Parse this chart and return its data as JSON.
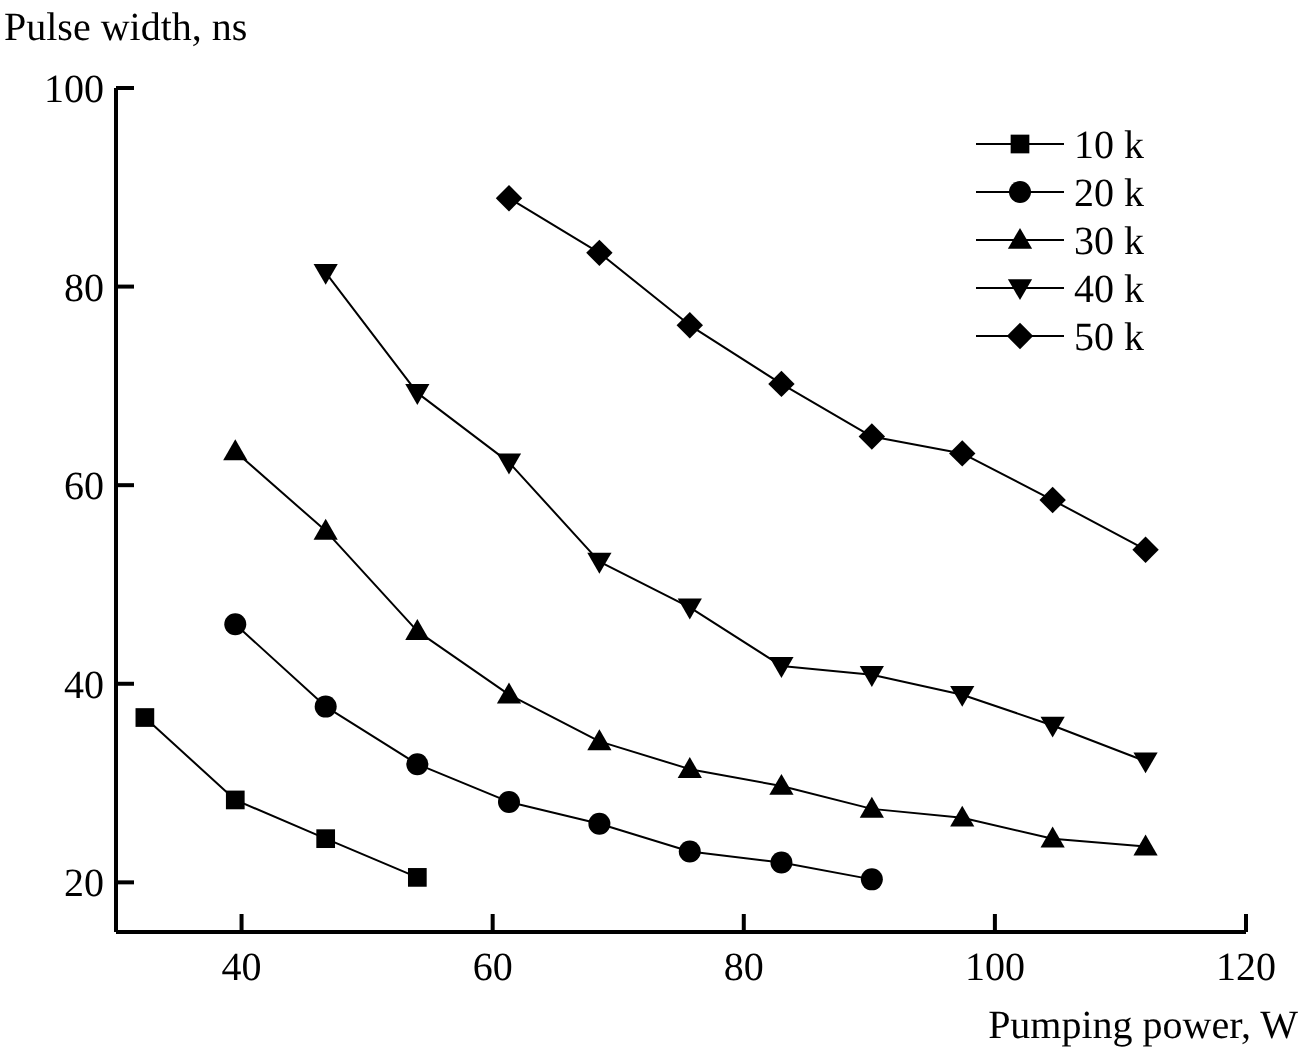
{
  "chart_data": {
    "type": "line",
    "xlabel": "Pumping power, W",
    "ylabel": "Pulse width, ns",
    "xlim": [
      30,
      120
    ],
    "ylim": [
      15,
      100
    ],
    "xticks": [
      40,
      60,
      80,
      100,
      120
    ],
    "yticks": [
      20,
      40,
      60,
      80,
      100
    ],
    "grid": false,
    "legend": "top right",
    "line_style": "solid",
    "series": [
      {
        "name": "10 k",
        "color": "#000000",
        "marker": "square",
        "x": [
          32.3,
          39.5,
          46.7,
          54
        ],
        "values": [
          36.6,
          28.3,
          24.4,
          20.5
        ]
      },
      {
        "name": "20 k",
        "color": "#000000",
        "marker": "circle",
        "x": [
          39.5,
          46.7,
          54,
          61.3,
          68.5,
          75.7,
          83,
          90.2
        ],
        "values": [
          46,
          37.7,
          31.9,
          28.1,
          25.9,
          23.1,
          22,
          20.3
        ]
      },
      {
        "name": "30 k",
        "color": "#000000",
        "marker": "triangle",
        "x": [
          39.5,
          46.7,
          54,
          61.3,
          68.5,
          75.7,
          83,
          90.2,
          97.4,
          104.6,
          112
        ],
        "values": [
          63.4,
          55.4,
          45.3,
          38.9,
          34.2,
          31.4,
          29.7,
          27.4,
          26.5,
          24.4,
          23.6
        ]
      },
      {
        "name": "40 k",
        "color": "#000000",
        "marker": "triangle-down",
        "x": [
          46.7,
          54,
          61.3,
          68.5,
          75.7,
          83,
          90.2,
          97.4,
          104.6,
          112
        ],
        "values": [
          81.4,
          69.3,
          62.3,
          52.3,
          47.7,
          41.8,
          40.9,
          38.9,
          35.8,
          32.2
        ]
      },
      {
        "name": "50 k",
        "color": "#000000",
        "marker": "diamond",
        "x": [
          61.3,
          68.5,
          75.7,
          83,
          90.2,
          97.4,
          104.6,
          112
        ],
        "values": [
          88.9,
          83.4,
          76.1,
          70.2,
          64.9,
          63.2,
          58.5,
          53.5
        ]
      }
    ]
  }
}
